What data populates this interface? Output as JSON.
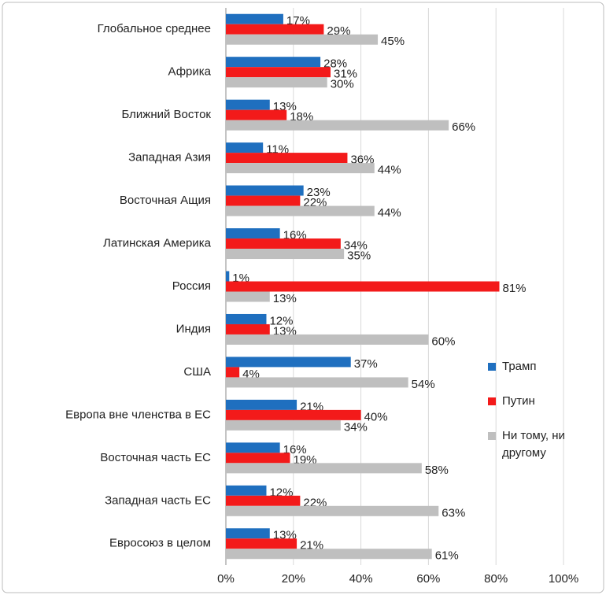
{
  "chart_data": {
    "type": "hbar",
    "categories": [
      "Глобальное среднее",
      "Африка",
      "Ближний Восток",
      "Западная Азия",
      "Восточная Ащия",
      "Латинская Америка",
      "Россия",
      "Индия",
      "США",
      "Европа вне членства в ЕС",
      "Восточная часть ЕС",
      "Западная часть ЕС",
      "Евросоюз в целом"
    ],
    "series": [
      {
        "name": "Трамп",
        "color": "#1f6fbf",
        "values": [
          17,
          28,
          13,
          11,
          23,
          16,
          1,
          12,
          37,
          21,
          16,
          12,
          13
        ],
        "value_labels": [
          "17%",
          "28%",
          "13%",
          "11%",
          "23%",
          "16%",
          "1%",
          "12%",
          "37%",
          "21%",
          "16%",
          "12%",
          "13%"
        ]
      },
      {
        "name": "Путин",
        "color": "#f31a1a",
        "values": [
          29,
          31,
          18,
          36,
          22,
          34,
          81,
          13,
          4,
          40,
          19,
          22,
          21
        ],
        "value_labels": [
          "29%",
          "31%",
          "18%",
          "36%",
          "22%",
          "34%",
          "81%",
          "13%",
          "4%",
          "40%",
          "19%",
          "22%",
          "21%"
        ]
      },
      {
        "name": "Ни тому, ни другому",
        "color": "#bfbfbf",
        "values": [
          45,
          30,
          66,
          44,
          44,
          35,
          13,
          60,
          54,
          34,
          58,
          63,
          61
        ],
        "value_labels": [
          "45%",
          "30%",
          "66%",
          "44%",
          "44%",
          "35%",
          "13%",
          "60%",
          "54%",
          "34%",
          "58%",
          "63%",
          "61%"
        ]
      }
    ],
    "xlim": [
      0,
      100
    ],
    "xticks": [
      {
        "value": 0,
        "label": "0%"
      },
      {
        "value": 20,
        "label": "20%"
      },
      {
        "value": 40,
        "label": "40%"
      },
      {
        "value": 60,
        "label": "60%"
      },
      {
        "value": 80,
        "label": "80%"
      },
      {
        "value": 100,
        "label": "100%"
      }
    ],
    "grid": true
  }
}
